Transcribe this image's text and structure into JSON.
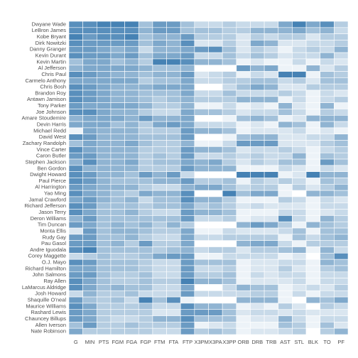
{
  "chart_data": {
    "type": "heatmap",
    "columns": [
      "G",
      "MIN",
      "PTS",
      "FGM",
      "FGA",
      "FGP",
      "FTM",
      "FTA",
      "FTP",
      "X3PM",
      "X3PA",
      "X3PP",
      "ORB",
      "DRB",
      "TRB",
      "AST",
      "STL",
      "BLK",
      "TO",
      "PF"
    ],
    "rows": [
      "Dwyane Wade",
      "LeBron James",
      "Kobe Bryant",
      "Dirk Nowitzki",
      "Danny Granger",
      "Kevin Durant",
      "Kevin Martin",
      "Al Jefferson",
      "Chris Paul",
      "Carmelo Anthony",
      "Chris Bosh",
      "Brandon Roy",
      "Antawn Jamison",
      "Tony Parker",
      "Joe Johnson",
      "Amare Stoudemire",
      "Devin Harris",
      "Michael Redd",
      "David West",
      "Zachary Randolph",
      "Vince Carter",
      "Caron Butler",
      "Stephen Jackson",
      "Ben Gordon",
      "Dwight Howard",
      "Paul Pierce",
      "Al Harrington",
      "Yao Ming",
      "Jamal Crawford",
      "Richard Jefferson",
      "Jason Terry",
      "Deron Williams",
      "Tim Duncan",
      "Monta Ellis",
      "Rudy Gay",
      "Pau Gasol",
      "Andre Iguodala",
      "Corey Maggette",
      "O.J. Mayo",
      "Richard Hamilton",
      "John Salmons",
      "Ray Allen",
      "LaMarcus Aldridge",
      "Josh Howard",
      "Shaquille O'neal",
      "Maurice Williams",
      "Rashard Lewis",
      "Chauncey Billups",
      "Allen Iverson",
      "Nate Robinson"
    ],
    "values": [
      [
        0.9,
        0.9,
        1,
        1,
        1,
        0.5,
        0.8,
        0.8,
        0.5,
        0.3,
        0.3,
        0.4,
        0.3,
        0.3,
        0.3,
        0.7,
        1,
        0.7,
        0.9,
        0.4
      ],
      [
        0.9,
        0.9,
        0.9,
        0.9,
        0.9,
        0.6,
        0.8,
        0.8,
        0.5,
        0.5,
        0.5,
        0.4,
        0.4,
        0.6,
        0.6,
        0.6,
        0.7,
        0.5,
        0.6,
        0.3
      ],
      [
        1,
        0.8,
        0.9,
        0.9,
        1,
        0.5,
        0.6,
        0.6,
        0.8,
        0.4,
        0.4,
        0.4,
        0.2,
        0.4,
        0.3,
        0.4,
        0.4,
        0.2,
        0.4,
        0.4
      ],
      [
        0.9,
        0.8,
        0.8,
        0.8,
        0.8,
        0.5,
        0.7,
        0.6,
        0.9,
        0.2,
        0.2,
        0.4,
        0.2,
        0.7,
        0.6,
        0.2,
        0.2,
        0.3,
        0.3,
        0.4
      ],
      [
        0.8,
        0.8,
        0.7,
        0.6,
        0.7,
        0.3,
        0.6,
        0.6,
        0.7,
        0.8,
        0.9,
        0.5,
        0.2,
        0.4,
        0.3,
        0.1,
        0.3,
        0.4,
        0.3,
        0.6
      ],
      [
        0.9,
        0.8,
        0.8,
        0.7,
        0.8,
        0.5,
        0.7,
        0.7,
        0.8,
        0.3,
        0.3,
        0.5,
        0.3,
        0.5,
        0.4,
        0.2,
        0.3,
        0.3,
        0.6,
        0.3
      ],
      [
        0.5,
        0.7,
        0.7,
        0.5,
        0.6,
        0.4,
        1,
        1,
        0.9,
        0.6,
        0.6,
        0.5,
        0.1,
        0.2,
        0.1,
        0.1,
        0.3,
        0.1,
        0.3,
        0.2
      ],
      [
        0.6,
        0.7,
        0.7,
        0.7,
        0.7,
        0.6,
        0.5,
        0.5,
        0.6,
        0,
        0,
        0,
        0.8,
        0.6,
        0.7,
        0.1,
        0.1,
        0.6,
        0.2,
        0.4
      ],
      [
        0.9,
        0.8,
        0.7,
        0.6,
        0.6,
        0.5,
        0.6,
        0.6,
        0.8,
        0.2,
        0.3,
        0.4,
        0.1,
        0.3,
        0.2,
        1,
        1,
        0.1,
        0.5,
        0.4
      ],
      [
        0.7,
        0.7,
        0.7,
        0.7,
        0.7,
        0.4,
        0.5,
        0.5,
        0.7,
        0.3,
        0.3,
        0.4,
        0.4,
        0.5,
        0.5,
        0.3,
        0.4,
        0.2,
        0.5,
        0.5
      ],
      [
        0.9,
        0.8,
        0.7,
        0.6,
        0.6,
        0.6,
        0.7,
        0.7,
        0.7,
        0,
        0,
        0.3,
        0.5,
        0.7,
        0.6,
        0.2,
        0.2,
        0.4,
        0.4,
        0.4
      ],
      [
        0.9,
        0.8,
        0.7,
        0.6,
        0.6,
        0.5,
        0.5,
        0.5,
        0.7,
        0.3,
        0.3,
        0.5,
        0.3,
        0.3,
        0.3,
        0.4,
        0.3,
        0.1,
        0.3,
        0.2
      ],
      [
        0.9,
        0.8,
        0.7,
        0.6,
        0.6,
        0.5,
        0.4,
        0.5,
        0.6,
        0.4,
        0.4,
        0.4,
        0.6,
        0.6,
        0.6,
        0.1,
        0.3,
        0.1,
        0.3,
        0.4
      ],
      [
        0.8,
        0.7,
        0.7,
        0.7,
        0.7,
        0.6,
        0.4,
        0.4,
        0.6,
        0.1,
        0.1,
        0.3,
        0.1,
        0.2,
        0.1,
        0.6,
        0.2,
        0.1,
        0.6,
        0.1
      ],
      [
        0.9,
        0.9,
        0.7,
        0.6,
        0.6,
        0.4,
        0.3,
        0.3,
        0.7,
        0.5,
        0.5,
        0.4,
        0.2,
        0.3,
        0.3,
        0.5,
        0.3,
        0.1,
        0.4,
        0.3
      ],
      [
        0.6,
        0.7,
        0.7,
        0.7,
        0.6,
        0.8,
        0.6,
        0.6,
        0.7,
        0,
        0,
        0.1,
        0.5,
        0.6,
        0.5,
        0.1,
        0.2,
        0.6,
        0.6,
        0.6
      ],
      [
        0.7,
        0.7,
        0.7,
        0.5,
        0.6,
        0.4,
        0.7,
        0.8,
        0.7,
        0.3,
        0.3,
        0.3,
        0.1,
        0.2,
        0.1,
        0.6,
        0.5,
        0.1,
        0.6,
        0.3
      ],
      [
        0.1,
        0.7,
        0.6,
        0.6,
        0.6,
        0.4,
        0.4,
        0.4,
        0.8,
        0.6,
        0.6,
        0.5,
        0.1,
        0.2,
        0.2,
        0.2,
        0.3,
        0.1,
        0.2,
        0.1
      ],
      [
        0.9,
        0.8,
        0.6,
        0.6,
        0.6,
        0.5,
        0.5,
        0.5,
        0.8,
        0,
        0,
        0.1,
        0.5,
        0.6,
        0.6,
        0.2,
        0.2,
        0.3,
        0.3,
        0.6
      ],
      [
        0.5,
        0.7,
        0.6,
        0.6,
        0.7,
        0.5,
        0.4,
        0.4,
        0.6,
        0.1,
        0.1,
        0.3,
        0.8,
        0.8,
        0.8,
        0.2,
        0.2,
        0.2,
        0.4,
        0.5
      ],
      [
        0.9,
        0.7,
        0.6,
        0.6,
        0.6,
        0.4,
        0.4,
        0.4,
        0.8,
        0.6,
        0.6,
        0.5,
        0.2,
        0.3,
        0.3,
        0.4,
        0.3,
        0.1,
        0.3,
        0.4
      ],
      [
        0.8,
        0.8,
        0.6,
        0.6,
        0.6,
        0.4,
        0.5,
        0.4,
        0.8,
        0.3,
        0.3,
        0.4,
        0.3,
        0.4,
        0.3,
        0.3,
        0.6,
        0.1,
        0.5,
        0.4
      ],
      [
        0.6,
        0.9,
        0.6,
        0.6,
        0.7,
        0.4,
        0.5,
        0.5,
        0.7,
        0.6,
        0.7,
        0.4,
        0.2,
        0.4,
        0.3,
        0.5,
        0.5,
        0.1,
        0.8,
        0.5
      ],
      [
        0.9,
        0.6,
        0.6,
        0.6,
        0.6,
        0.4,
        0.4,
        0.4,
        0.8,
        0.6,
        0.6,
        0.6,
        0.1,
        0.1,
        0.1,
        0.3,
        0.2,
        0.1,
        0.3,
        0.2
      ],
      [
        0.9,
        0.8,
        0.6,
        0.6,
        0.5,
        0.8,
        0.6,
        0.8,
        0.3,
        0,
        0,
        0,
        1,
        1,
        1,
        0.1,
        0.2,
        1,
        0.6,
        0.6
      ],
      [
        0.9,
        0.8,
        0.6,
        0.5,
        0.5,
        0.5,
        0.6,
        0.6,
        0.8,
        0.4,
        0.4,
        0.5,
        0.1,
        0.4,
        0.3,
        0.4,
        0.3,
        0.1,
        0.5,
        0.4
      ],
      [
        0.8,
        0.7,
        0.6,
        0.6,
        0.6,
        0.4,
        0.3,
        0.3,
        0.6,
        0.7,
        0.7,
        0.5,
        0.3,
        0.4,
        0.4,
        0.1,
        0.4,
        0.2,
        0.4,
        0.6
      ],
      [
        0.9,
        0.7,
        0.6,
        0.5,
        0.4,
        0.7,
        0.6,
        0.6,
        0.9,
        0,
        0,
        1,
        0.5,
        0.7,
        0.7,
        0.1,
        0,
        0.6,
        0.6,
        0.5
      ],
      [
        0.7,
        0.8,
        0.6,
        0.5,
        0.6,
        0.3,
        0.5,
        0.5,
        0.9,
        0.6,
        0.6,
        0.4,
        0.1,
        0.1,
        0.1,
        0.4,
        0.3,
        0.1,
        0.3,
        0.2
      ],
      [
        0.9,
        0.8,
        0.5,
        0.5,
        0.5,
        0.4,
        0.5,
        0.5,
        0.7,
        0.4,
        0.5,
        0.4,
        0.2,
        0.3,
        0.2,
        0.2,
        0.2,
        0.1,
        0.3,
        0.3
      ],
      [
        0.9,
        0.7,
        0.5,
        0.5,
        0.6,
        0.4,
        0.3,
        0.3,
        0.8,
        0.6,
        0.6,
        0.5,
        0.1,
        0.1,
        0.1,
        0.3,
        0.3,
        0.1,
        0.2,
        0.3
      ],
      [
        0.6,
        0.8,
        0.5,
        0.5,
        0.5,
        0.5,
        0.5,
        0.5,
        0.8,
        0.3,
        0.3,
        0.4,
        0.1,
        0.2,
        0.2,
        0.9,
        0.3,
        0.1,
        0.6,
        0.4
      ],
      [
        0.8,
        0.7,
        0.5,
        0.6,
        0.5,
        0.6,
        0.4,
        0.6,
        0.4,
        0,
        0,
        0,
        0.6,
        0.8,
        0.7,
        0.4,
        0.1,
        0.6,
        0.5,
        0.4
      ],
      [
        0.2,
        0.8,
        0.5,
        0.6,
        0.6,
        0.5,
        0.4,
        0.4,
        0.7,
        0.1,
        0.1,
        0.3,
        0.2,
        0.2,
        0.2,
        0.3,
        0.5,
        0.1,
        0.5,
        0.5
      ],
      [
        0.8,
        0.8,
        0.5,
        0.5,
        0.6,
        0.4,
        0.3,
        0.3,
        0.7,
        0.3,
        0.3,
        0.4,
        0.4,
        0.4,
        0.4,
        0.1,
        0.5,
        0.3,
        0.5,
        0.6
      ],
      [
        0.8,
        0.8,
        0.5,
        0.6,
        0.4,
        0.8,
        0.4,
        0.4,
        0.7,
        0,
        0,
        0,
        0.6,
        0.7,
        0.7,
        0.3,
        0.1,
        0.4,
        0.4,
        0.4
      ],
      [
        0.9,
        1,
        0.5,
        0.5,
        0.5,
        0.5,
        0.4,
        0.5,
        0.6,
        0.3,
        0.4,
        0.4,
        0.2,
        0.4,
        0.4,
        0.5,
        0.6,
        0.1,
        0.6,
        0.3
      ],
      [
        0.3,
        0.4,
        0.5,
        0.4,
        0.4,
        0.5,
        0.7,
        0.8,
        0.8,
        0.1,
        0.1,
        0.3,
        0.3,
        0.3,
        0.3,
        0.1,
        0.2,
        0,
        0.5,
        0.9
      ],
      [
        0.9,
        0.8,
        0.5,
        0.5,
        0.5,
        0.4,
        0.3,
        0.3,
        0.8,
        0.5,
        0.5,
        0.5,
        0.1,
        0.2,
        0.2,
        0.3,
        0.3,
        0.1,
        0.6,
        0.5
      ],
      [
        0.7,
        0.7,
        0.5,
        0.5,
        0.5,
        0.4,
        0.3,
        0.3,
        0.8,
        0.3,
        0.3,
        0.4,
        0.1,
        0.2,
        0.2,
        0.4,
        0.2,
        0.1,
        0.4,
        0.5
      ],
      [
        0.8,
        0.8,
        0.5,
        0.4,
        0.4,
        0.5,
        0.3,
        0.3,
        0.8,
        0.4,
        0.4,
        0.5,
        0.1,
        0.3,
        0.2,
        0.3,
        0.3,
        0.1,
        0.3,
        0.3
      ],
      [
        0.9,
        0.7,
        0.5,
        0.4,
        0.4,
        0.5,
        0.4,
        0.4,
        1,
        0.6,
        0.6,
        0.5,
        0.1,
        0.2,
        0.2,
        0.2,
        0.3,
        0.1,
        0.3,
        0.3
      ],
      [
        0.9,
        0.7,
        0.5,
        0.6,
        0.5,
        0.5,
        0.3,
        0.3,
        0.7,
        0,
        0,
        0.3,
        0.6,
        0.5,
        0.5,
        0.1,
        0.2,
        0.3,
        0.2,
        0.4
      ],
      [
        0.3,
        0.6,
        0.4,
        0.4,
        0.5,
        0.3,
        0.3,
        0.3,
        0.8,
        0.3,
        0.3,
        0.3,
        0.3,
        0.4,
        0.4,
        0.1,
        0.3,
        0.1,
        0.3,
        0.3
      ],
      [
        0.8,
        0.5,
        0.4,
        0.5,
        0.3,
        1,
        0.5,
        0.9,
        0.1,
        0,
        0,
        0,
        0.6,
        0.6,
        0.6,
        0.1,
        0,
        0.6,
        0.5,
        0.7
      ],
      [
        0.9,
        0.7,
        0.4,
        0.4,
        0.4,
        0.5,
        0.3,
        0.3,
        0.9,
        0.6,
        0.6,
        0.5,
        0.1,
        0.2,
        0.1,
        0.4,
        0.2,
        0,
        0.4,
        0.3
      ],
      [
        0.8,
        0.7,
        0.4,
        0.4,
        0.4,
        0.4,
        0.2,
        0.2,
        0.8,
        0.8,
        0.8,
        0.5,
        0.2,
        0.3,
        0.3,
        0.2,
        0.3,
        0.2,
        0.2,
        0.2
      ],
      [
        0.8,
        0.7,
        0.4,
        0.3,
        0.3,
        0.4,
        0.6,
        0.6,
        0.9,
        0.5,
        0.5,
        0.5,
        0.1,
        0.2,
        0.2,
        0.6,
        0.3,
        0.1,
        0.3,
        0.3
      ],
      [
        0.5,
        0.8,
        0.4,
        0.4,
        0.5,
        0.4,
        0.4,
        0.4,
        0.8,
        0.1,
        0.2,
        0.3,
        0.1,
        0.1,
        0.1,
        0.5,
        0.4,
        0.1,
        0.5,
        0.2
      ],
      [
        0.7,
        0.4,
        0.4,
        0.4,
        0.4,
        0.4,
        0.3,
        0.3,
        0.8,
        0.4,
        0.5,
        0.4,
        0.1,
        0.2,
        0.2,
        0.3,
        0.4,
        0,
        0.4,
        0.6
      ]
    ],
    "color_low": "#ffffff",
    "color_high": "#4682b4"
  }
}
